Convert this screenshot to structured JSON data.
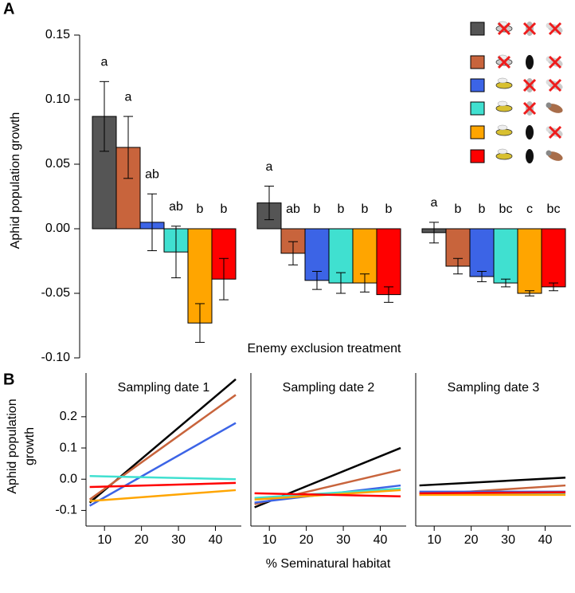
{
  "chart_data": [
    {
      "type": "bar",
      "panel": "A",
      "ylabel": "Aphid population growth",
      "xlabel": "Enemy exclusion treatment",
      "categories": [
        null,
        null,
        null
      ],
      "ylim": [
        -0.1,
        0.15
      ],
      "yticks": [
        {
          "value": -0.1,
          "label": "-0.10"
        },
        {
          "value": -0.05,
          "label": "-0.05"
        },
        {
          "value": 0,
          "label": "0.00"
        },
        {
          "value": 0.05,
          "label": "0.05"
        },
        {
          "value": 0.1,
          "label": "0.10"
        },
        {
          "value": 0.15,
          "label": "0.15"
        }
      ],
      "legend": "upper right",
      "series": [
        {
          "color": "#555555",
          "values": [
            0.087,
            0.02,
            -0.003
          ],
          "errors": [
            0.027,
            0.013,
            0.008
          ],
          "letters": [
            "a",
            "a",
            "a"
          ]
        },
        {
          "color": "#c8643c",
          "values": [
            0.063,
            -0.019,
            -0.029
          ],
          "errors": [
            0.024,
            0.009,
            0.006
          ],
          "letters": [
            "a",
            "ab",
            "b"
          ]
        },
        {
          "color": "#3c64e6",
          "values": [
            0.005,
            -0.04,
            -0.037
          ],
          "errors": [
            0.022,
            0.007,
            0.004
          ],
          "letters": [
            "ab",
            "b",
            "b"
          ]
        },
        {
          "color": "#40e0d0",
          "values": [
            -0.018,
            -0.042,
            -0.042
          ],
          "errors": [
            0.02,
            0.008,
            0.003
          ],
          "letters": [
            "ab",
            "b",
            "bc"
          ]
        },
        {
          "color": "#ffa500",
          "values": [
            -0.073,
            -0.042,
            -0.05
          ],
          "errors": [
            0.015,
            0.007,
            0.002
          ],
          "letters": [
            "b",
            "b",
            "c"
          ]
        },
        {
          "color": "#ff0000",
          "values": [
            -0.039,
            -0.051,
            -0.045
          ],
          "errors": [
            0.016,
            0.006,
            0.003
          ],
          "letters": [
            "b",
            "b",
            "bc"
          ]
        }
      ]
    },
    {
      "type": "line",
      "panel": "B",
      "title": "Sampling date 1",
      "ylabel": [
        "Aphid population",
        "growth"
      ],
      "x": [
        6,
        45.5
      ],
      "xlim": [
        5,
        47
      ],
      "xticks": [
        10,
        20,
        30,
        40
      ],
      "ylim": [
        -0.15,
        0.34
      ],
      "yticks": [
        -0.1,
        {
          "value": 0,
          "label": "0.0"
        },
        0.1,
        0.2
      ],
      "series": [
        {
          "color": "#000000",
          "values": [
            -0.075,
            0.32
          ]
        },
        {
          "color": "#c8643c",
          "values": [
            -0.065,
            0.27
          ]
        },
        {
          "color": "#3c64e6",
          "values": [
            -0.085,
            0.18
          ]
        },
        {
          "color": "#40e0d0",
          "values": [
            0.01,
            0.0
          ]
        },
        {
          "color": "#ffa500",
          "values": [
            -0.07,
            -0.035
          ]
        },
        {
          "color": "#ff0000",
          "values": [
            -0.025,
            -0.012
          ]
        }
      ]
    },
    {
      "type": "line",
      "title": "Sampling date 2",
      "xlabel": "% Seminatural habitat",
      "x": [
        6,
        45.5
      ],
      "xlim": [
        5,
        47
      ],
      "xticks": [
        10,
        20,
        30,
        40
      ],
      "ylim": [
        -0.15,
        0.34
      ],
      "series": [
        {
          "color": "#000000",
          "values": [
            -0.09,
            0.1
          ]
        },
        {
          "color": "#c8643c",
          "values": [
            -0.08,
            0.03
          ]
        },
        {
          "color": "#3c64e6",
          "values": [
            -0.075,
            -0.02
          ]
        },
        {
          "color": "#40e0d0",
          "values": [
            -0.06,
            -0.03
          ]
        },
        {
          "color": "#ffa500",
          "values": [
            -0.065,
            -0.035
          ]
        },
        {
          "color": "#ff0000",
          "values": [
            -0.045,
            -0.055
          ]
        }
      ]
    },
    {
      "type": "line",
      "title": "Sampling date 3",
      "x": [
        6,
        45.5
      ],
      "xlim": [
        5,
        47
      ],
      "xticks": [
        10,
        20,
        30,
        40
      ],
      "ylim": [
        -0.15,
        0.34
      ],
      "series": [
        {
          "color": "#000000",
          "values": [
            -0.02,
            0.005
          ]
        },
        {
          "color": "#c8643c",
          "values": [
            -0.05,
            -0.02
          ]
        },
        {
          "color": "#3c64e6",
          "values": [
            -0.04,
            -0.04
          ]
        },
        {
          "color": "#40e0d0",
          "values": [
            -0.045,
            -0.045
          ]
        },
        {
          "color": "#ffa500",
          "values": [
            -0.05,
            -0.05
          ]
        },
        {
          "color": "#ff0000",
          "values": [
            -0.045,
            -0.042
          ]
        }
      ]
    }
  ]
}
